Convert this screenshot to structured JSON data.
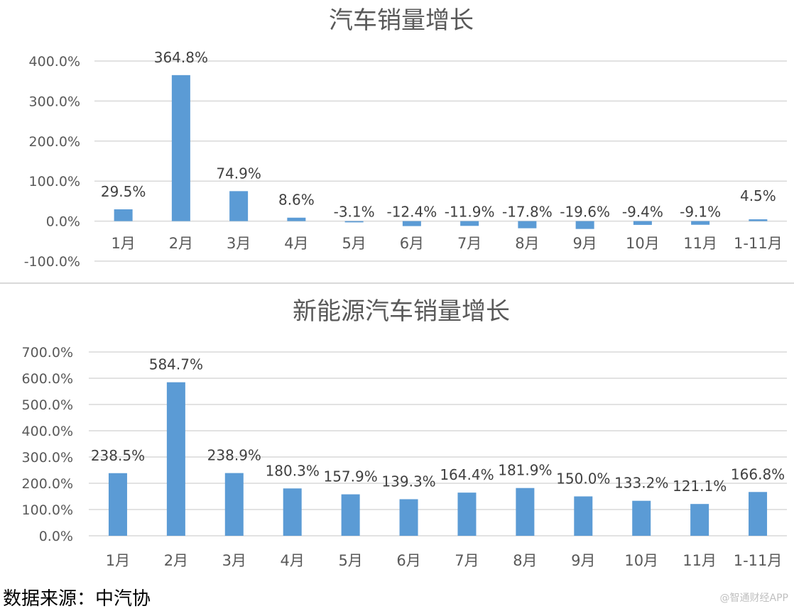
{
  "chart_data": [
    {
      "type": "bar",
      "title": "汽车销量增长",
      "categories": [
        "1月",
        "2月",
        "3月",
        "4月",
        "5月",
        "6月",
        "7月",
        "8月",
        "9月",
        "10月",
        "11月",
        "1-11月"
      ],
      "values": [
        29.5,
        364.8,
        74.9,
        8.6,
        -3.1,
        -12.4,
        -11.9,
        -17.8,
        -19.6,
        -9.4,
        -9.1,
        4.5
      ],
      "data_labels": [
        "29.5%",
        "364.8%",
        "74.9%",
        "8.6%",
        "-3.1%",
        "-12.4%",
        "-11.9%",
        "-17.8%",
        "-19.6%",
        "-9.4%",
        "-9.1%",
        "4.5%"
      ],
      "yticks": [
        "400.0%",
        "300.0%",
        "200.0%",
        "100.0%",
        "0.0%",
        "-100.0%"
      ],
      "ylim": [
        -100,
        400
      ],
      "grid": true,
      "color": "#5b9bd5"
    },
    {
      "type": "bar",
      "title": "新能源汽车销量增长",
      "categories": [
        "1月",
        "2月",
        "3月",
        "4月",
        "5月",
        "6月",
        "7月",
        "8月",
        "9月",
        "10月",
        "11月",
        "1-11月"
      ],
      "values": [
        238.5,
        584.7,
        238.9,
        180.3,
        157.9,
        139.3,
        164.4,
        181.9,
        150.0,
        133.2,
        121.1,
        166.8
      ],
      "data_labels": [
        "238.5%",
        "584.7%",
        "238.9%",
        "180.3%",
        "157.9%",
        "139.3%",
        "164.4%",
        "181.9%",
        "150.0%",
        "133.2%",
        "121.1%",
        "166.8%"
      ],
      "yticks": [
        "700.0%",
        "600.0%",
        "500.0%",
        "400.0%",
        "300.0%",
        "200.0%",
        "100.0%",
        "0.0%"
      ],
      "ylim": [
        0,
        700
      ],
      "grid": true,
      "color": "#5b9bd5"
    }
  ],
  "footer": {
    "source": "数据来源：中汽协",
    "watermark": "@智通财经APP"
  }
}
